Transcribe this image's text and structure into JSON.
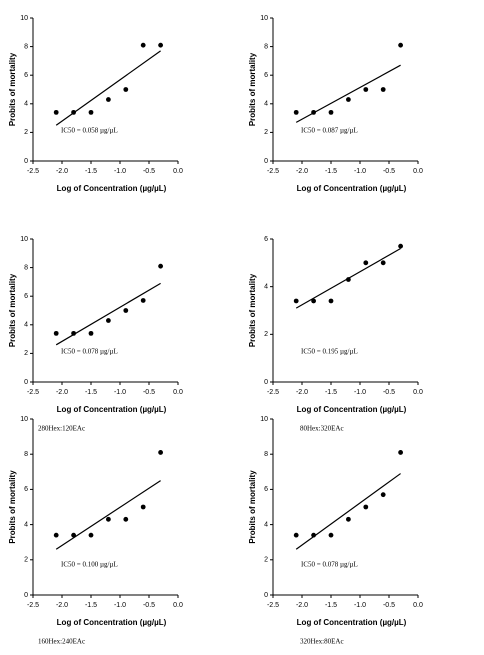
{
  "chart_data": [
    {
      "type": "scatter",
      "x_label": "Log of Concentration (µg/µL)",
      "y_label": "Probits of mortality",
      "annotation": "IC50 = 0.058 µg/µL",
      "x": [
        -2.1,
        -1.8,
        -1.5,
        -1.2,
        -0.9,
        -0.6,
        -0.3
      ],
      "values": [
        3.4,
        3.4,
        3.4,
        4.3,
        5.0,
        8.1,
        8.1
      ],
      "fit": {
        "x": [
          -2.1,
          -0.3
        ],
        "values": [
          2.5,
          7.7
        ]
      },
      "color": "#000000",
      "xlim": [
        -2.5,
        0
      ],
      "xticks": [
        {
          "value": -2.5,
          "label": "-2.5"
        },
        {
          "value": -2,
          "label": "-2.0"
        },
        {
          "value": -1.5,
          "label": "-1.5"
        },
        {
          "value": -1,
          "label": "-1.0"
        },
        {
          "value": -0.5,
          "label": "-0.5"
        },
        {
          "value": 0,
          "label": "0.0"
        }
      ],
      "ylim": [
        0,
        10
      ],
      "yticks": [
        0,
        2,
        4,
        6,
        8,
        10
      ]
    },
    {
      "type": "scatter",
      "x_label": "Log of Concentration (µg/µL)",
      "y_label": "Probits of mortality",
      "annotation": "IC50 = 0.087 µg/µL",
      "x": [
        -2.1,
        -1.8,
        -1.5,
        -1.2,
        -0.9,
        -0.6,
        -0.3
      ],
      "values": [
        3.4,
        3.4,
        3.4,
        4.3,
        5.0,
        5.0,
        8.1
      ],
      "fit": {
        "x": [
          -2.1,
          -0.3
        ],
        "values": [
          2.7,
          6.7
        ]
      },
      "color": "#000000",
      "xlim": [
        -2.5,
        0
      ],
      "xticks": [
        {
          "value": -2.5,
          "label": "-2.5"
        },
        {
          "value": -2,
          "label": "-2.0"
        },
        {
          "value": -1.5,
          "label": "-1.5"
        },
        {
          "value": -1,
          "label": "-1.0"
        },
        {
          "value": -0.5,
          "label": "-0.5"
        },
        {
          "value": 0,
          "label": "0.0"
        }
      ],
      "ylim": [
        0,
        10
      ],
      "yticks": [
        0,
        2,
        4,
        6,
        8,
        10
      ]
    },
    {
      "type": "scatter",
      "x_label": "Log of Concentration (µg/µL)",
      "y_label": "Probits of mortality",
      "annotation": "IC50 = 0.078 µg/µL",
      "caption": "280Hex:120EAc",
      "x": [
        -2.1,
        -1.8,
        -1.5,
        -1.2,
        -0.9,
        -0.6,
        -0.3
      ],
      "values": [
        3.4,
        3.4,
        3.4,
        4.3,
        5.0,
        5.7,
        8.1
      ],
      "fit": {
        "x": [
          -2.1,
          -0.3
        ],
        "values": [
          2.6,
          6.9
        ]
      },
      "color": "#000000",
      "xlim": [
        -2.5,
        0
      ],
      "xticks": [
        {
          "value": -2.5,
          "label": "-2.5"
        },
        {
          "value": -2,
          "label": "-2.0"
        },
        {
          "value": -1.5,
          "label": "-1.5"
        },
        {
          "value": -1,
          "label": "-1.0"
        },
        {
          "value": -0.5,
          "label": "-0.5"
        },
        {
          "value": 0,
          "label": "0.0"
        }
      ],
      "ylim": [
        0,
        10
      ],
      "yticks": [
        0,
        2,
        4,
        6,
        8,
        10
      ]
    },
    {
      "type": "scatter",
      "x_label": "Log of Concentration (µg/µL)",
      "y_label": "Probits of mortality",
      "annotation": "IC50 = 0.195 µg/µL",
      "caption": "80Hex:320EAc",
      "x": [
        -2.1,
        -1.8,
        -1.5,
        -1.2,
        -0.9,
        -0.6,
        -0.3
      ],
      "values": [
        3.4,
        3.4,
        3.4,
        4.3,
        5.0,
        5.0,
        5.7
      ],
      "fit": {
        "x": [
          -2.1,
          -0.3
        ],
        "values": [
          3.1,
          5.6
        ]
      },
      "color": "#000000",
      "xlim": [
        -2.5,
        0
      ],
      "xticks": [
        {
          "value": -2.5,
          "label": "-2.5"
        },
        {
          "value": -2,
          "label": "-2.0"
        },
        {
          "value": -1.5,
          "label": "-1.5"
        },
        {
          "value": -1,
          "label": "-1.0"
        },
        {
          "value": -0.5,
          "label": "-0.5"
        },
        {
          "value": 0,
          "label": "0.0"
        }
      ],
      "ylim": [
        0,
        6
      ],
      "yticks": [
        0,
        2,
        4,
        6
      ]
    },
    {
      "type": "scatter",
      "x_label": "Log of Concentration (µg/µL)",
      "y_label": "Probits of mortality",
      "annotation": "IC50 = 0.100 µg/µL",
      "caption": "160Hex:240EAc",
      "x": [
        -2.1,
        -1.8,
        -1.5,
        -1.2,
        -0.9,
        -0.6,
        -0.3
      ],
      "values": [
        3.4,
        3.4,
        3.4,
        4.3,
        4.3,
        5.0,
        8.1
      ],
      "fit": {
        "x": [
          -2.1,
          -0.3
        ],
        "values": [
          2.6,
          6.5
        ]
      },
      "color": "#000000",
      "xlim": [
        -2.5,
        0
      ],
      "xticks": [
        {
          "value": -2.5,
          "label": "-2.5"
        },
        {
          "value": -2,
          "label": "-2.0"
        },
        {
          "value": -1.5,
          "label": "-1.5"
        },
        {
          "value": -1,
          "label": "-1.0"
        },
        {
          "value": -0.5,
          "label": "-0.5"
        },
        {
          "value": 0,
          "label": "0.0"
        }
      ],
      "ylim": [
        0,
        10
      ],
      "yticks": [
        0,
        2,
        4,
        6,
        8,
        10
      ]
    },
    {
      "type": "scatter",
      "x_label": "Log of Concentration (µg/µL)",
      "y_label": "Probits of mortality",
      "annotation": "IC50 = 0.078 µg/µL",
      "caption": "320Hex:80EAc",
      "x": [
        -2.1,
        -1.8,
        -1.5,
        -1.2,
        -0.9,
        -0.6,
        -0.3
      ],
      "values": [
        3.4,
        3.4,
        3.4,
        4.3,
        5.0,
        5.7,
        8.1
      ],
      "fit": {
        "x": [
          -2.1,
          -0.3
        ],
        "values": [
          2.6,
          6.9
        ]
      },
      "color": "#000000",
      "xlim": [
        -2.5,
        0
      ],
      "xticks": [
        {
          "value": -2.5,
          "label": "-2.5"
        },
        {
          "value": -2,
          "label": "-2.0"
        },
        {
          "value": -1.5,
          "label": "-1.5"
        },
        {
          "value": -1,
          "label": "-1.0"
        },
        {
          "value": -0.5,
          "label": "-0.5"
        },
        {
          "value": 0,
          "label": "0.0"
        }
      ],
      "ylim": [
        0,
        10
      ],
      "yticks": [
        0,
        2,
        4,
        6,
        8,
        10
      ]
    }
  ]
}
